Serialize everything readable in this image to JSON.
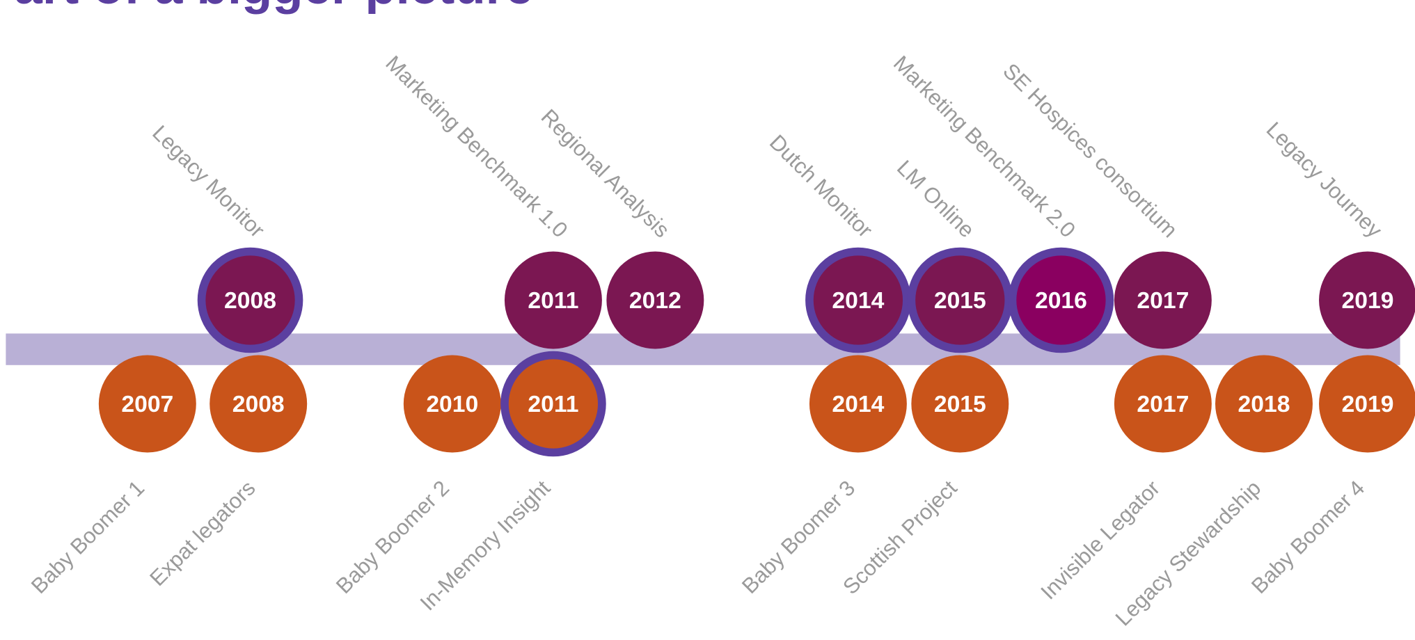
{
  "title": "Part of a bigger picture",
  "top": [
    {
      "year": "2008",
      "label": "Legacy Monitor",
      "highlighted": true
    },
    {
      "year": "2011",
      "label": "Marketing Benchmark 1.0",
      "highlighted": false
    },
    {
      "year": "2012",
      "label": "Regional Analysis",
      "highlighted": false
    },
    {
      "year": "2014",
      "label": "Dutch Monitor",
      "highlighted": true
    },
    {
      "year": "2015",
      "label": "LM Online",
      "highlighted": true
    },
    {
      "year": "2016",
      "label": "Marketing Benchmark 2.0",
      "highlighted": true
    },
    {
      "year": "2017",
      "label": "SE Hospices consortium",
      "highlighted": false
    },
    {
      "year": "2019",
      "label": "Legacy Journey",
      "highlighted": false
    }
  ],
  "bottom": [
    {
      "year": "2007",
      "label": "Baby Boomer 1",
      "highlighted": false
    },
    {
      "year": "2008",
      "label": "Expat legators",
      "highlighted": false
    },
    {
      "year": "2010",
      "label": "Baby Boomer 2",
      "highlighted": false
    },
    {
      "year": "2011",
      "label": "In-Memory Insight",
      "highlighted": true
    },
    {
      "year": "2014",
      "label": "Baby Boomer 3",
      "highlighted": false
    },
    {
      "year": "2015",
      "label": "Scottish Project",
      "highlighted": false
    },
    {
      "year": "2017",
      "label": "Invisible Legator",
      "highlighted": false
    },
    {
      "year": "2018",
      "label": "Legacy Stewardship",
      "highlighted": false
    },
    {
      "year": "2019",
      "label": "Baby Boomer 4",
      "highlighted": false
    }
  ]
}
